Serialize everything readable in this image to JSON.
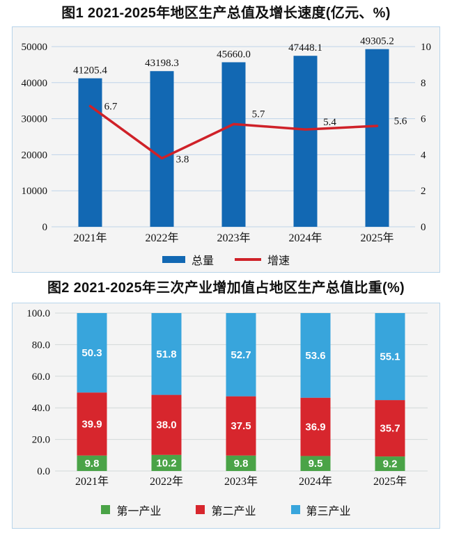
{
  "colors": {
    "bar_blue": "#1268b3",
    "line_red": "#cf2128",
    "industry_green": "#4aa347",
    "industry_red": "#d7262d",
    "industry_blue": "#38a5dc",
    "panel_border": "#b7d4ea",
    "panel_bg": "#f4f4f4",
    "grid_fig1": "#bed3e9",
    "grid_fig2": "#d2d8d8"
  },
  "chart_data": [
    {
      "type": "bar",
      "subtype": "bar+line combo, dual axis",
      "title": "图1  2021-2025年地区生产总值及增长速度(亿元、%)",
      "categories": [
        "2021年",
        "2022年",
        "2023年",
        "2024年",
        "2025年"
      ],
      "series": [
        {
          "name": "总量",
          "type": "bar",
          "axis": "left",
          "color": "#1268b3",
          "values": [
            41205.4,
            43198.3,
            45660.0,
            47448.1,
            49305.2
          ],
          "labels": [
            "41205.4",
            "43198.3",
            "45660.0",
            "47448.1",
            "49305.2"
          ]
        },
        {
          "name": "增速",
          "type": "line",
          "axis": "right",
          "color": "#cf2128",
          "values": [
            6.7,
            3.8,
            5.7,
            5.4,
            5.6
          ],
          "labels": [
            "6.7",
            "3.8",
            "5.7",
            "5.4",
            "5.6"
          ]
        }
      ],
      "left_axis": {
        "min": 0,
        "max": 50000,
        "step": 10000,
        "ticks": [
          "0",
          "10000",
          "20000",
          "30000",
          "40000",
          "50000"
        ]
      },
      "right_axis": {
        "min": 0,
        "max": 10,
        "step": 2,
        "ticks": [
          "0",
          "2",
          "4",
          "6",
          "8",
          "10"
        ]
      },
      "grid": true,
      "legend_position": "bottom"
    },
    {
      "type": "bar",
      "subtype": "stacked percentage bars",
      "title": "图2  2021-2025年三次产业增加值占地区生产总值比重(%)",
      "categories": [
        "2021年",
        "2022年",
        "2023年",
        "2024年",
        "2025年"
      ],
      "series": [
        {
          "name": "第一产业",
          "color": "#4aa347",
          "values": [
            9.8,
            10.2,
            9.8,
            9.5,
            9.2
          ],
          "labels": [
            "9.8",
            "10.2",
            "9.8",
            "9.5",
            "9.2"
          ]
        },
        {
          "name": "第二产业",
          "color": "#d7262d",
          "values": [
            39.9,
            38.0,
            37.5,
            36.9,
            35.7
          ],
          "labels": [
            "39.9",
            "38.0",
            "37.5",
            "36.9",
            "35.7"
          ]
        },
        {
          "name": "第三产业",
          "color": "#38a5dc",
          "values": [
            50.3,
            51.8,
            52.7,
            53.6,
            55.1
          ],
          "labels": [
            "50.3",
            "51.8",
            "52.7",
            "53.6",
            "55.1"
          ]
        }
      ],
      "y_axis": {
        "min": 0,
        "max": 100,
        "step": 20,
        "ticks": [
          "0.0",
          "20.0",
          "40.0",
          "60.0",
          "80.0",
          "100.0"
        ]
      },
      "grid": true,
      "legend_position": "bottom"
    }
  ]
}
